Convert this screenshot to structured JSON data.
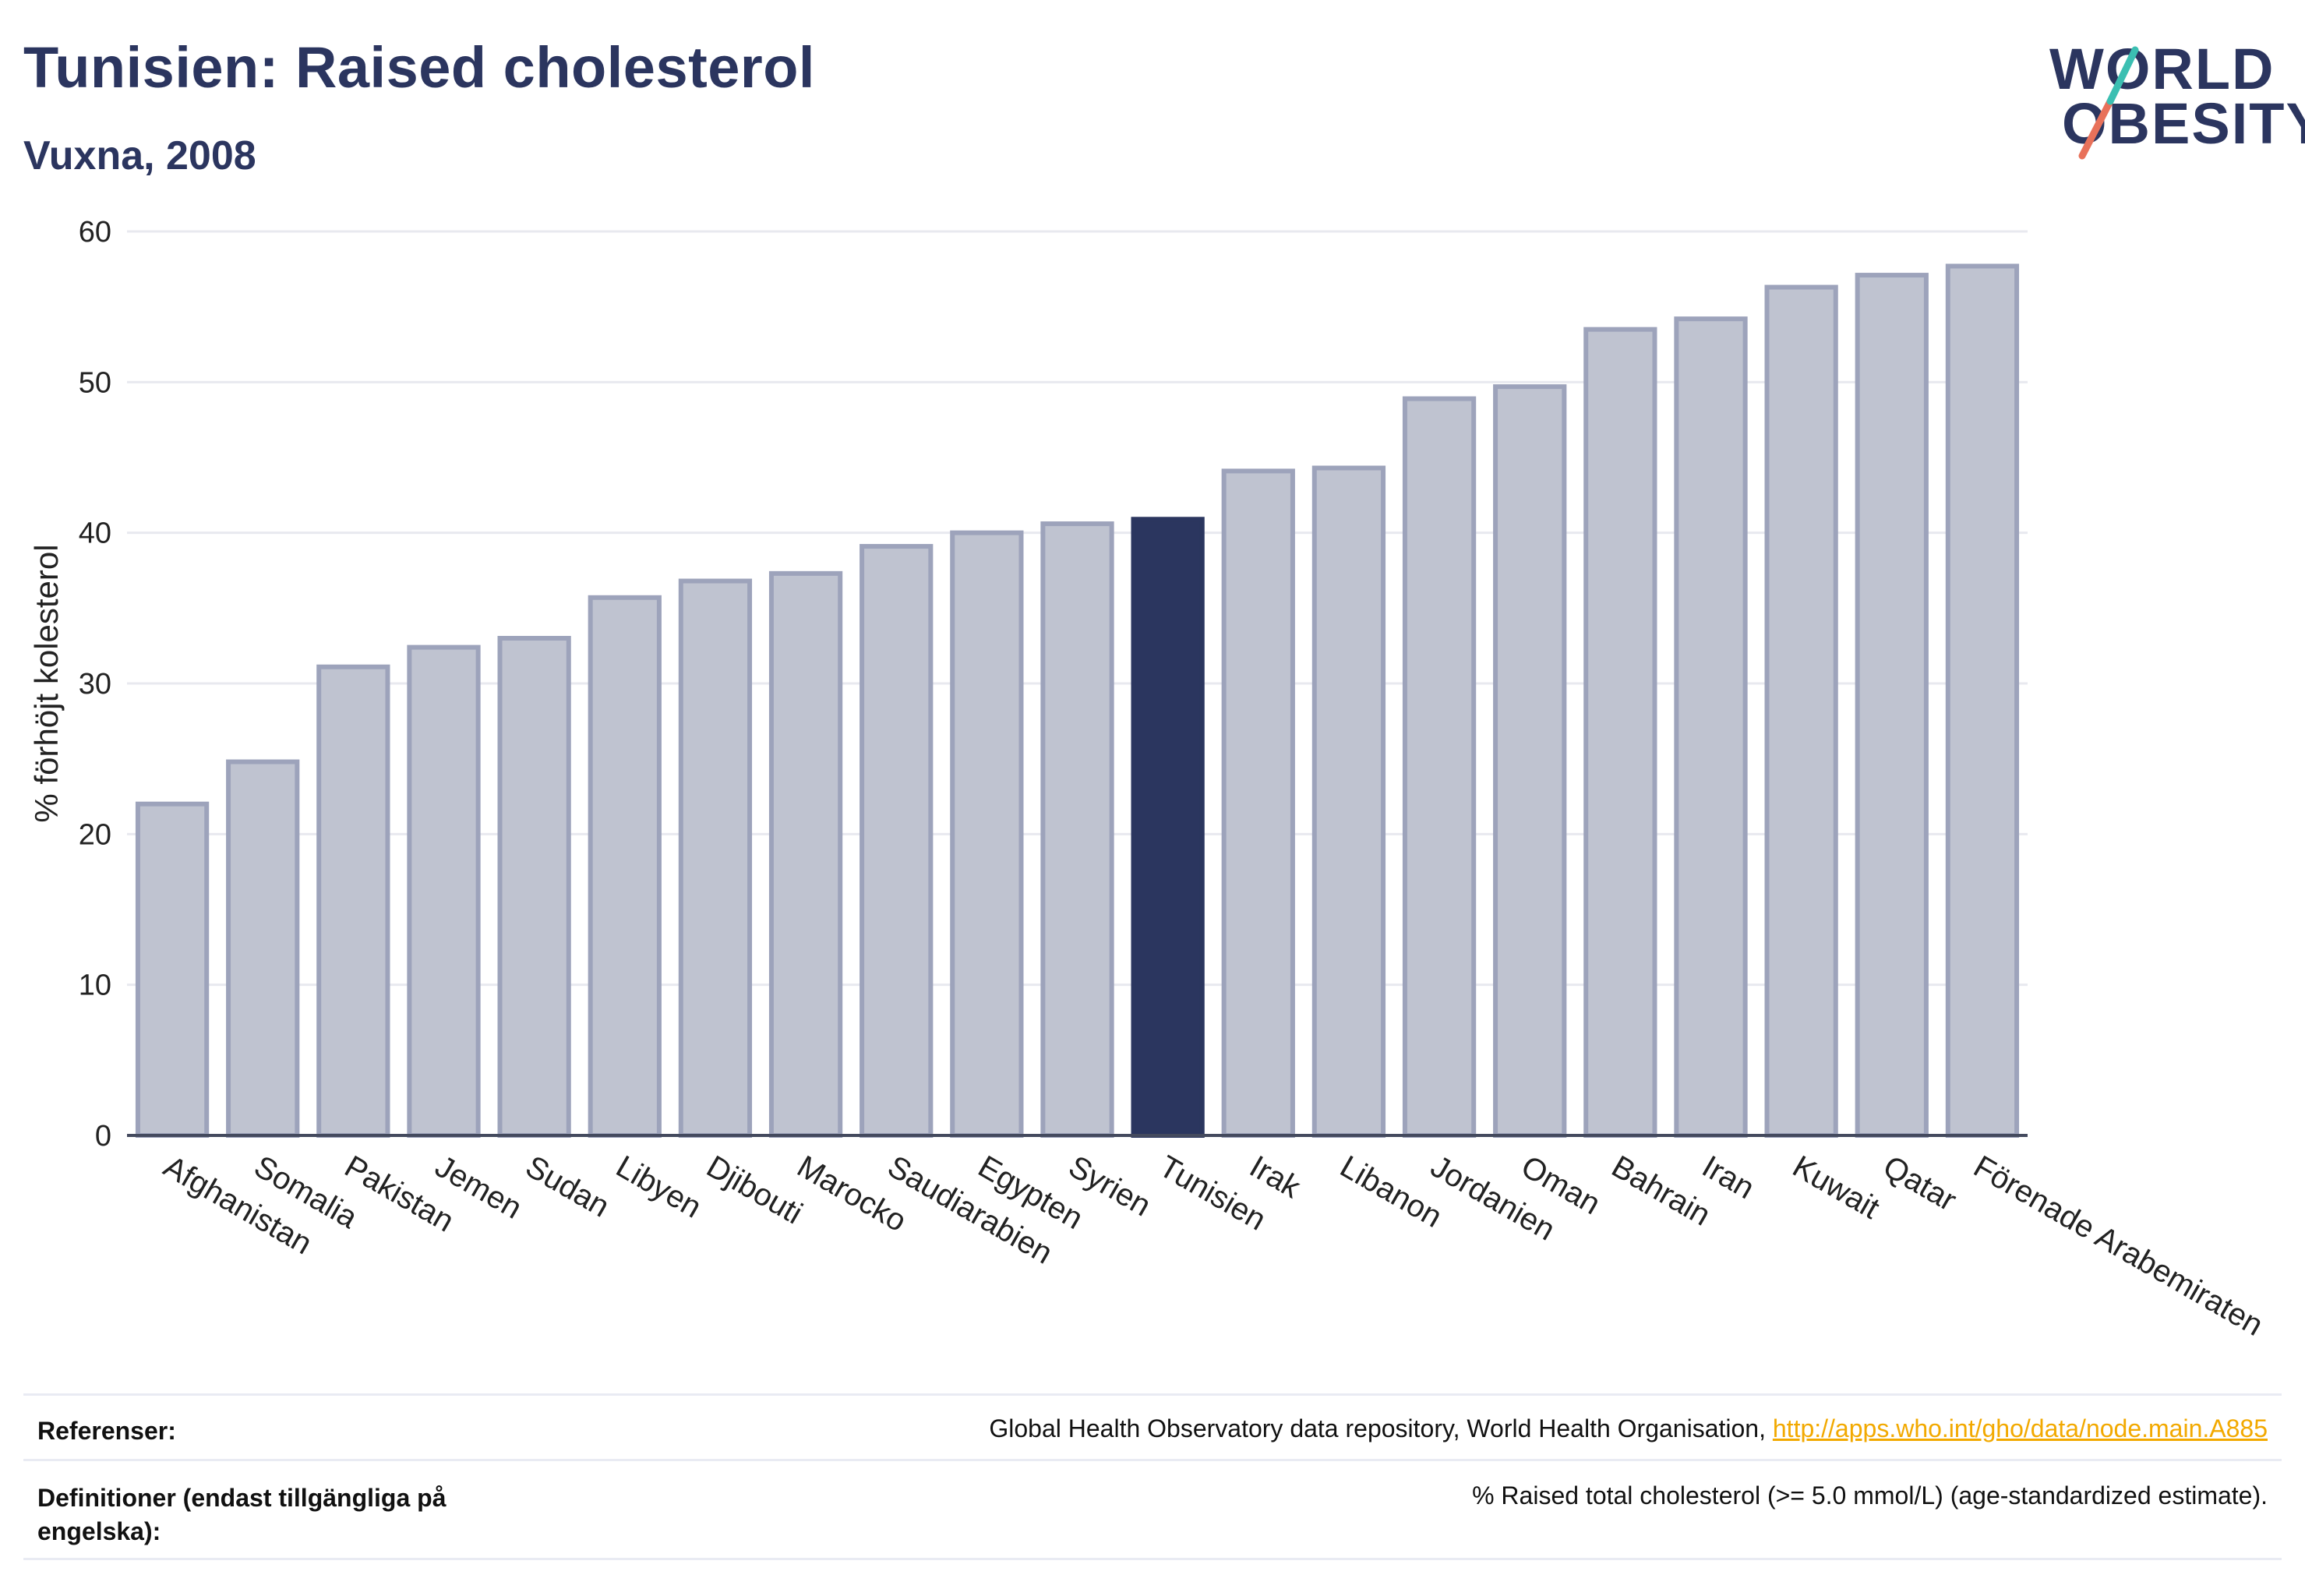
{
  "header": {
    "title": "Tunisien: Raised cholesterol",
    "subtitle": "Vuxna, 2008"
  },
  "logo": {
    "line1": "WORLD",
    "line2": "OBESITY"
  },
  "colors": {
    "bar": "#bfc3d0",
    "bar_stroke": "#9da3bb",
    "highlight": "#2b365f",
    "grid": "#e8e9ef",
    "text": "#2b355f"
  },
  "chart_data": {
    "type": "bar",
    "ylabel": "% förhöjt kolesterol",
    "ylim": [
      0,
      60
    ],
    "yticks": [
      0,
      10,
      20,
      30,
      40,
      50,
      60
    ],
    "highlight": "Tunisien",
    "grid": true,
    "categories": [
      "Afghanistan",
      "Somalia",
      "Pakistan",
      "Jemen",
      "Sudan",
      "Libyen",
      "Djibouti",
      "Marocko",
      "Saudiarabien",
      "Egypten",
      "Syrien",
      "Tunisien",
      "Irak",
      "Libanon",
      "Jordanien",
      "Oman",
      "Bahrain",
      "Iran",
      "Kuwait",
      "Qatar",
      "Förenade Arabemiraten"
    ],
    "values": [
      22.0,
      24.8,
      31.1,
      32.4,
      33.0,
      35.7,
      36.8,
      37.3,
      39.1,
      40.0,
      40.6,
      40.9,
      44.1,
      44.3,
      48.9,
      49.7,
      53.5,
      54.2,
      56.3,
      57.1,
      57.7
    ]
  },
  "footer": {
    "references_label": "Referenser:",
    "references_text": "Global Health Observatory data repository, World Health Organisation, ",
    "references_link": "http://apps.who.int/gho/data/node.main.A885",
    "definitions_label": "Definitioner (endast tillgängliga på engelska):",
    "definitions_text": "% Raised total cholesterol (>= 5.0 mmol/L) (age-standardized estimate)."
  }
}
